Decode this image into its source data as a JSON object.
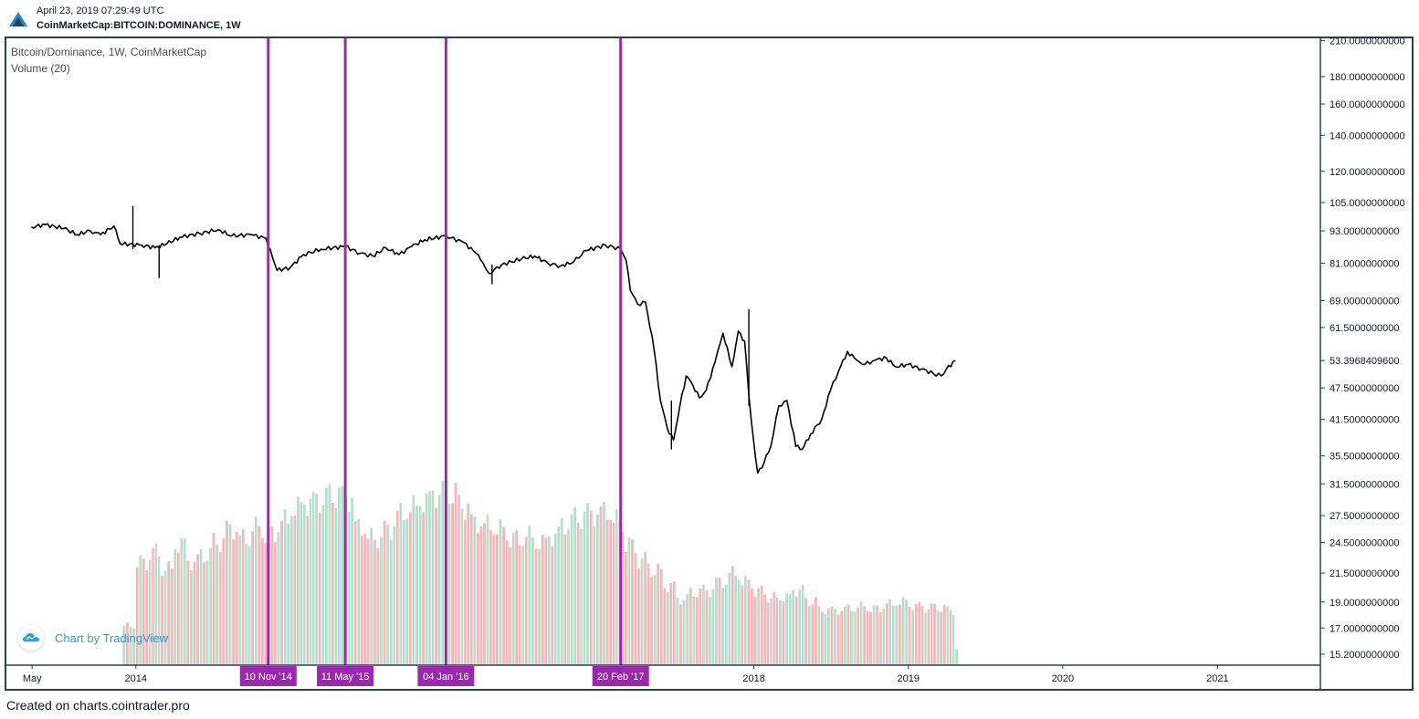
{
  "header": {
    "timestamp": "April 23, 2019 07:29:49 UTC",
    "symbol": "CoinMarketCap:BITCOIN:DOMINANCE, 1W"
  },
  "legend": {
    "title": "Bitcoin/Dominance, 1W, CoinMarketCap",
    "volume": "Volume (20)"
  },
  "badge": {
    "text": "Chart by TradingView",
    "icon": "tradingview-cloud-icon"
  },
  "footer": {
    "text": "Created on charts.cointrader.pro"
  },
  "colors": {
    "price_line": "#000000",
    "marker_line": "#9c27b0",
    "marker_label_bg": "#9c27b0",
    "volume_up": "#b4dfcc",
    "volume_down": "#f6b5b8",
    "frame": "#2b4150",
    "badge_text": "#2d9cdb"
  },
  "chart_data": {
    "type": "line",
    "series_name": "Bitcoin/Dominance",
    "interval": "1W",
    "y_scale": "log",
    "ylim": [
      14.5,
      212
    ],
    "y_ticks": [
      "210.0000000000",
      "180.0000000000",
      "160.0000000000",
      "140.0000000000",
      "120.0000000000",
      "105.0000000000",
      "93.0000000000",
      "81.0000000000",
      "69.0000000000",
      "61.5000000000",
      "53.3968409600",
      "47.5000000000",
      "41.5000000000",
      "35.5000000000",
      "31.5000000000",
      "27.5000000000",
      "24.5000000000",
      "21.5000000000",
      "19.0000000000",
      "17.0000000000",
      "15.2000000000"
    ],
    "last_value": "53.3968409600",
    "x_ticks": [
      "May",
      "2014",
      "2018",
      "2019",
      "2020",
      "2021"
    ],
    "xlim": [
      "2013-03-01",
      "2021-09-01"
    ],
    "x_tick_dates": [
      "2013-05-01",
      "2014-01-01",
      "2018-01-01",
      "2019-01-01",
      "2020-01-01",
      "2021-01-01"
    ],
    "markers": [
      {
        "date": "2014-11-10",
        "label": "10 Nov '14"
      },
      {
        "date": "2015-05-11",
        "label": "11 May '15"
      },
      {
        "date": "2016-01-04",
        "label": "04 Jan '16"
      },
      {
        "date": "2017-02-20",
        "label": "20 Feb '17"
      }
    ],
    "price": [
      [
        "2013-04-29",
        94.5
      ],
      [
        "2013-06-01",
        95.5
      ],
      [
        "2013-07-15",
        94.0
      ],
      [
        "2013-08-15",
        91.5
      ],
      [
        "2013-09-15",
        93.0
      ],
      [
        "2013-10-10",
        91.5
      ],
      [
        "2013-11-10",
        95.0
      ],
      [
        "2013-11-25",
        88.0
      ],
      [
        "2014-01-15",
        87.5
      ],
      [
        "2014-02-15",
        86.5
      ],
      [
        "2014-03-15",
        88.0
      ],
      [
        "2014-04-15",
        90.5
      ],
      [
        "2014-06-01",
        92.0
      ],
      [
        "2014-07-15",
        93.5
      ],
      [
        "2014-08-15",
        91.0
      ],
      [
        "2014-10-01",
        91.5
      ],
      [
        "2014-11-05",
        90.0
      ],
      [
        "2014-11-20",
        83.0
      ],
      [
        "2014-12-01",
        78.5
      ],
      [
        "2015-01-01",
        79.5
      ],
      [
        "2015-02-01",
        84.0
      ],
      [
        "2015-03-15",
        86.0
      ],
      [
        "2015-05-11",
        87.0
      ],
      [
        "2015-06-15",
        84.5
      ],
      [
        "2015-07-15",
        83.5
      ],
      [
        "2015-08-15",
        86.5
      ],
      [
        "2015-09-15",
        84.0
      ],
      [
        "2015-10-15",
        87.0
      ],
      [
        "2015-11-15",
        89.5
      ],
      [
        "2016-01-04",
        91.0
      ],
      [
        "2016-02-15",
        88.5
      ],
      [
        "2016-03-15",
        84.5
      ],
      [
        "2016-04-01",
        81.0
      ],
      [
        "2016-04-15",
        77.5
      ],
      [
        "2016-05-15",
        80.5
      ],
      [
        "2016-07-01",
        82.5
      ],
      [
        "2016-08-01",
        83.5
      ],
      [
        "2016-09-01",
        81.0
      ],
      [
        "2016-10-01",
        80.0
      ],
      [
        "2016-11-01",
        81.5
      ],
      [
        "2016-12-01",
        85.5
      ],
      [
        "2017-01-15",
        87.5
      ],
      [
        "2017-02-20",
        86.0
      ],
      [
        "2017-03-05",
        82.0
      ],
      [
        "2017-03-15",
        72.0
      ],
      [
        "2017-04-01",
        68.0
      ],
      [
        "2017-04-20",
        68.5
      ],
      [
        "2017-05-10",
        56.0
      ],
      [
        "2017-05-25",
        45.0
      ],
      [
        "2017-06-10",
        40.0
      ],
      [
        "2017-06-25",
        38.0
      ],
      [
        "2017-07-10",
        44.0
      ],
      [
        "2017-07-25",
        50.0
      ],
      [
        "2017-08-10",
        48.0
      ],
      [
        "2017-08-25",
        45.5
      ],
      [
        "2017-09-10",
        47.0
      ],
      [
        "2017-10-01",
        53.0
      ],
      [
        "2017-10-20",
        60.0
      ],
      [
        "2017-11-10",
        52.0
      ],
      [
        "2017-11-25",
        60.5
      ],
      [
        "2017-12-10",
        58.0
      ],
      [
        "2017-12-20",
        46.0
      ],
      [
        "2017-12-31",
        38.0
      ],
      [
        "2018-01-10",
        33.0
      ],
      [
        "2018-01-25",
        34.5
      ],
      [
        "2018-02-10",
        37.0
      ],
      [
        "2018-03-01",
        44.0
      ],
      [
        "2018-03-20",
        45.0
      ],
      [
        "2018-04-10",
        37.0
      ],
      [
        "2018-04-25",
        36.5
      ],
      [
        "2018-05-15",
        39.0
      ],
      [
        "2018-06-10",
        41.5
      ],
      [
        "2018-07-01",
        47.0
      ],
      [
        "2018-07-20",
        51.0
      ],
      [
        "2018-08-10",
        55.5
      ],
      [
        "2018-09-01",
        53.5
      ],
      [
        "2018-09-20",
        52.5
      ],
      [
        "2018-10-15",
        53.5
      ],
      [
        "2018-11-10",
        54.0
      ],
      [
        "2018-12-01",
        52.0
      ],
      [
        "2019-01-01",
        52.5
      ],
      [
        "2019-02-01",
        51.5
      ],
      [
        "2019-03-01",
        50.5
      ],
      [
        "2019-03-20",
        50.0
      ],
      [
        "2019-04-01",
        51.5
      ],
      [
        "2019-04-22",
        53.4
      ]
    ],
    "price_spikes": [
      {
        "date": "2013-12-25",
        "high": 103.5,
        "low": 86.0
      },
      {
        "date": "2014-02-25",
        "high": 87.5,
        "low": 76.0
      },
      {
        "date": "2016-04-22",
        "high": 80.5,
        "low": 74.0
      },
      {
        "date": "2017-12-20",
        "high": 66.5,
        "low": 44.0
      },
      {
        "date": "2017-06-20",
        "high": 45.0,
        "low": 36.5
      }
    ],
    "volume": {
      "note": "relative weekly volume, 20-period",
      "bars": [
        [
          "2013-12-01",
          0.18,
          "up"
        ],
        [
          "2014-01-01",
          0.47,
          "down"
        ],
        [
          "2014-02-01",
          0.52,
          "up"
        ],
        [
          "2014-03-01",
          0.44,
          "down"
        ],
        [
          "2014-04-01",
          0.55,
          "up"
        ],
        [
          "2014-05-01",
          0.47,
          "down"
        ],
        [
          "2014-06-01",
          0.5,
          "up"
        ],
        [
          "2014-07-01",
          0.56,
          "down"
        ],
        [
          "2014-08-01",
          0.62,
          "down"
        ],
        [
          "2014-09-01",
          0.58,
          "up"
        ],
        [
          "2014-10-01",
          0.63,
          "down"
        ],
        [
          "2014-11-01",
          0.6,
          "down"
        ],
        [
          "2014-12-01",
          0.66,
          "up"
        ],
        [
          "2015-01-01",
          0.72,
          "up"
        ],
        [
          "2015-02-01",
          0.74,
          "up"
        ],
        [
          "2015-03-01",
          0.75,
          "up"
        ],
        [
          "2015-04-01",
          0.77,
          "up"
        ],
        [
          "2015-05-01",
          0.76,
          "up"
        ],
        [
          "2015-06-01",
          0.63,
          "down"
        ],
        [
          "2015-07-01",
          0.58,
          "down"
        ],
        [
          "2015-08-01",
          0.62,
          "up"
        ],
        [
          "2015-09-01",
          0.69,
          "up"
        ],
        [
          "2015-10-01",
          0.72,
          "up"
        ],
        [
          "2015-11-01",
          0.75,
          "up"
        ],
        [
          "2015-12-01",
          0.78,
          "up"
        ],
        [
          "2016-01-01",
          0.78,
          "down"
        ],
        [
          "2016-02-01",
          0.72,
          "down"
        ],
        [
          "2016-03-01",
          0.65,
          "down"
        ],
        [
          "2016-04-01",
          0.64,
          "down"
        ],
        [
          "2016-05-01",
          0.62,
          "down"
        ],
        [
          "2016-06-01",
          0.58,
          "down"
        ],
        [
          "2016-07-01",
          0.59,
          "up"
        ],
        [
          "2016-08-01",
          0.56,
          "down"
        ],
        [
          "2016-09-01",
          0.59,
          "up"
        ],
        [
          "2016-10-01",
          0.64,
          "up"
        ],
        [
          "2016-11-01",
          0.67,
          "up"
        ],
        [
          "2016-12-01",
          0.69,
          "up"
        ],
        [
          "2017-01-01",
          0.7,
          "down"
        ],
        [
          "2017-02-01",
          0.66,
          "down"
        ],
        [
          "2017-03-01",
          0.55,
          "down"
        ],
        [
          "2017-04-01",
          0.48,
          "down"
        ],
        [
          "2017-05-01",
          0.43,
          "down"
        ],
        [
          "2017-06-01",
          0.36,
          "down"
        ],
        [
          "2017-07-01",
          0.3,
          "up"
        ],
        [
          "2017-08-01",
          0.33,
          "down"
        ],
        [
          "2017-09-01",
          0.34,
          "up"
        ],
        [
          "2017-10-01",
          0.38,
          "up"
        ],
        [
          "2017-11-01",
          0.42,
          "up"
        ],
        [
          "2017-12-01",
          0.38,
          "down"
        ],
        [
          "2018-01-01",
          0.34,
          "down"
        ],
        [
          "2018-02-01",
          0.31,
          "down"
        ],
        [
          "2018-03-01",
          0.31,
          "up"
        ],
        [
          "2018-04-01",
          0.34,
          "up"
        ],
        [
          "2018-05-01",
          0.29,
          "down"
        ],
        [
          "2018-06-01",
          0.25,
          "up"
        ],
        [
          "2018-07-01",
          0.25,
          "down"
        ],
        [
          "2018-08-01",
          0.26,
          "up"
        ],
        [
          "2018-09-01",
          0.27,
          "down"
        ],
        [
          "2018-10-01",
          0.26,
          "down"
        ],
        [
          "2018-11-01",
          0.28,
          "up"
        ],
        [
          "2018-12-01",
          0.29,
          "up"
        ],
        [
          "2019-01-01",
          0.27,
          "down"
        ],
        [
          "2019-02-01",
          0.26,
          "down"
        ],
        [
          "2019-03-01",
          0.26,
          "down"
        ],
        [
          "2019-04-01",
          0.25,
          "up"
        ],
        [
          "2019-04-22",
          0.07,
          "up"
        ]
      ]
    }
  }
}
